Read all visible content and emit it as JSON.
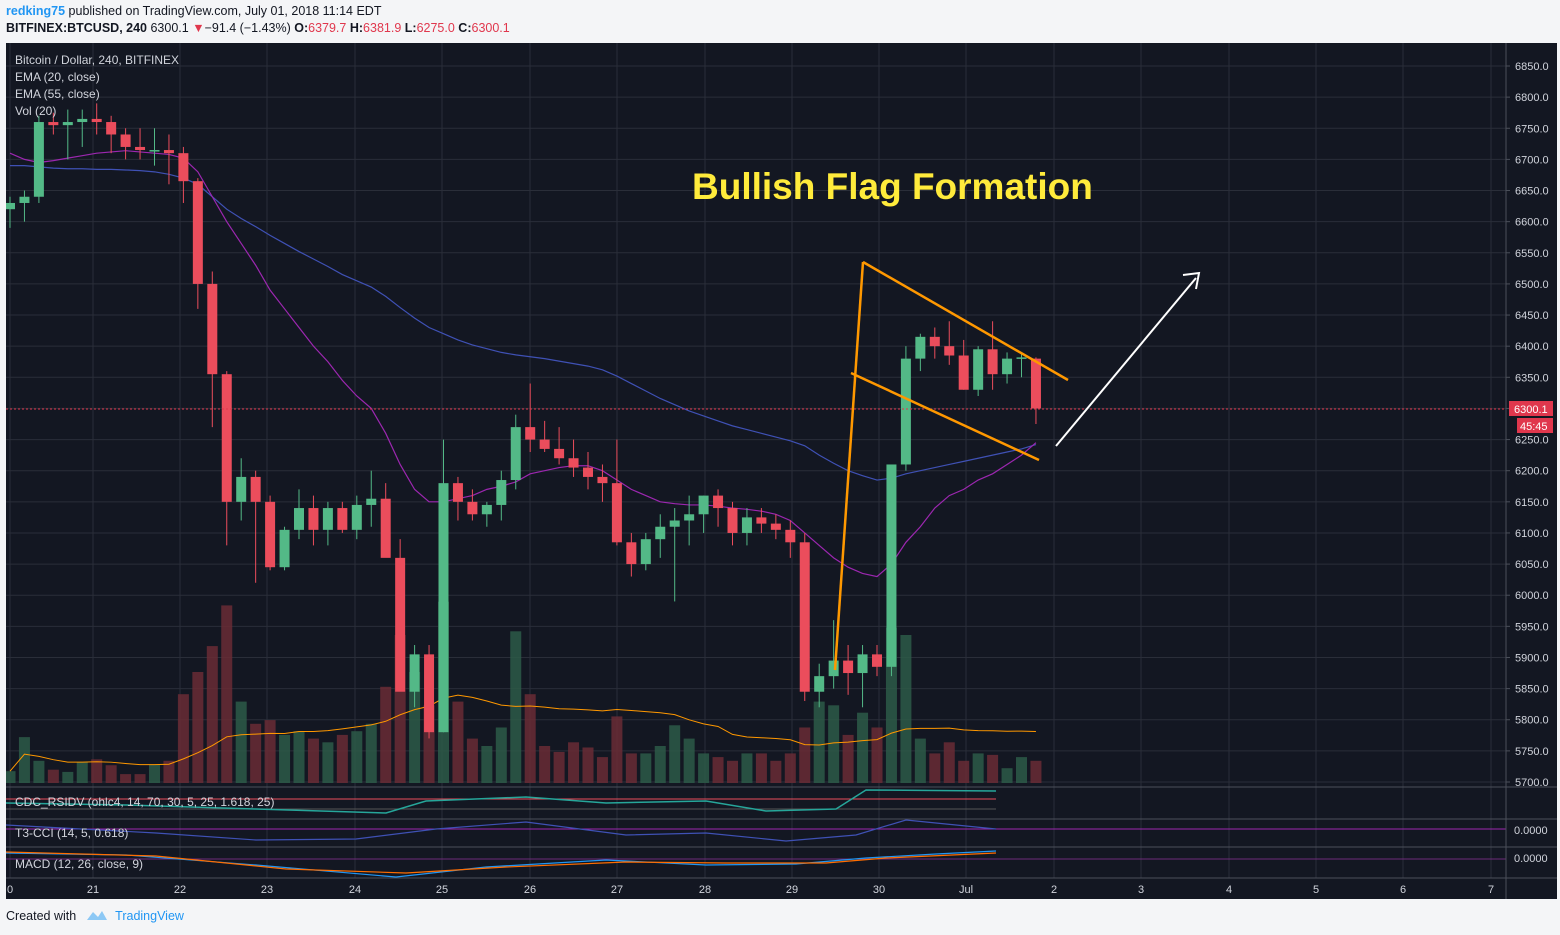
{
  "header": {
    "author": "redking75",
    "published": "published on TradingView.com, July 01, 2018 11:14 EDT",
    "symbol": "BITFINEX:BTCUSD, 240",
    "last": "6300.1",
    "change_arrow": "▼",
    "change": "−91.4 (−1.43%)",
    "o_label": "O:",
    "o_value": "6379.7",
    "h_label": "H:",
    "h_value": "6381.9",
    "l_label": "L:",
    "l_value": "6275.0",
    "c_label": "C:",
    "c_value": "6300.1"
  },
  "legend": [
    "Bitcoin / Dollar, 240, BITFINEX",
    "EMA (20, close)",
    "EMA (55, close)",
    "Vol (20)"
  ],
  "annotation": "Bullish Flag Formation",
  "indicators": {
    "rsi_label": "CDC_RSIDV (ohlc4, 14, 70, 30, 5, 25, 1.618, 25)",
    "cci_label": "T3-CCI (14, 5, 0.618)",
    "cci_value": "0.0000",
    "macd_label": "MACD (12, 26, close, 9)",
    "macd_value": "0.0000"
  },
  "price_badge": "6300.1",
  "countdown_badge": "45:45",
  "footer": {
    "created": "Created with",
    "brand": "TradingView"
  },
  "colors": {
    "up": "#53b987",
    "down": "#eb4d5c",
    "ema20": "#9c27b0",
    "ema55": "#3f51b5",
    "flag": "#ff9800",
    "annotation": "#ffeb3b",
    "volume_ma": "#ff9800"
  },
  "chart_data": {
    "type": "candlestick",
    "y_axis": {
      "min": 5700,
      "max": 6850,
      "ticks": [
        "6850.0",
        "6800.0",
        "6750.0",
        "6700.0",
        "6650.0",
        "6600.0",
        "6550.0",
        "6500.0",
        "6450.0",
        "6400.0",
        "6350.0",
        "6300.0",
        "6250.0",
        "6200.0",
        "6150.0",
        "6100.0",
        "6050.0",
        "6000.0",
        "5950.0",
        "5900.0",
        "5850.0",
        "5800.0",
        "5750.0",
        "5700.0"
      ]
    },
    "x_axis": {
      "ticks": [
        "0",
        "21",
        "22",
        "23",
        "24",
        "25",
        "26",
        "27",
        "28",
        "29",
        "30",
        "Jul",
        "2",
        "3",
        "4",
        "5",
        "6",
        "7"
      ]
    },
    "candles": [
      [
        6620,
        6640,
        6590,
        6630
      ],
      [
        6630,
        6650,
        6600,
        6640
      ],
      [
        6640,
        6770,
        6630,
        6760
      ],
      [
        6760,
        6775,
        6740,
        6755
      ],
      [
        6755,
        6780,
        6700,
        6760
      ],
      [
        6760,
        6780,
        6720,
        6765
      ],
      [
        6765,
        6790,
        6740,
        6760
      ],
      [
        6760,
        6770,
        6710,
        6740
      ],
      [
        6740,
        6750,
        6700,
        6720
      ],
      [
        6720,
        6750,
        6700,
        6715
      ],
      [
        6715,
        6750,
        6690,
        6715
      ],
      [
        6715,
        6740,
        6660,
        6710
      ],
      [
        6710,
        6720,
        6630,
        6665
      ],
      [
        6665,
        6670,
        6460,
        6500
      ],
      [
        6500,
        6520,
        6270,
        6355
      ],
      [
        6355,
        6360,
        6080,
        6150
      ],
      [
        6150,
        6220,
        6120,
        6190
      ],
      [
        6190,
        6200,
        6020,
        6150
      ],
      [
        6150,
        6160,
        6040,
        6045
      ],
      [
        6045,
        6110,
        6040,
        6105
      ],
      [
        6105,
        6170,
        6090,
        6140
      ],
      [
        6140,
        6160,
        6080,
        6105
      ],
      [
        6105,
        6150,
        6080,
        6140
      ],
      [
        6140,
        6150,
        6100,
        6105
      ],
      [
        6105,
        6160,
        6090,
        6145
      ],
      [
        6145,
        6200,
        6110,
        6155
      ],
      [
        6155,
        6180,
        6070,
        6060
      ],
      [
        6060,
        6090,
        5850,
        5845
      ],
      [
        5845,
        5920,
        5820,
        5905
      ],
      [
        5905,
        5920,
        5770,
        5780
      ],
      [
        5780,
        6250,
        5780,
        6180
      ],
      [
        6180,
        6190,
        6120,
        6150
      ],
      [
        6150,
        6170,
        6120,
        6130
      ],
      [
        6130,
        6150,
        6110,
        6145
      ],
      [
        6145,
        6200,
        6120,
        6185
      ],
      [
        6185,
        6290,
        6170,
        6270
      ],
      [
        6270,
        6340,
        6230,
        6250
      ],
      [
        6250,
        6280,
        6230,
        6235
      ],
      [
        6235,
        6270,
        6210,
        6220
      ],
      [
        6220,
        6250,
        6190,
        6205
      ],
      [
        6205,
        6230,
        6170,
        6190
      ],
      [
        6190,
        6210,
        6150,
        6180
      ],
      [
        6180,
        6250,
        6080,
        6085
      ],
      [
        6085,
        6100,
        6030,
        6050
      ],
      [
        6050,
        6100,
        6040,
        6090
      ],
      [
        6090,
        6130,
        6060,
        6110
      ],
      [
        6110,
        6140,
        5990,
        6120
      ],
      [
        6120,
        6160,
        6080,
        6130
      ],
      [
        6130,
        6160,
        6100,
        6160
      ],
      [
        6160,
        6170,
        6110,
        6140
      ],
      [
        6140,
        6150,
        6080,
        6100
      ],
      [
        6100,
        6140,
        6080,
        6125
      ],
      [
        6125,
        6140,
        6100,
        6115
      ],
      [
        6115,
        6130,
        6090,
        6105
      ],
      [
        6105,
        6120,
        6060,
        6085
      ],
      [
        6085,
        6100,
        5830,
        5845
      ],
      [
        5845,
        5890,
        5820,
        5870
      ],
      [
        5870,
        5960,
        5850,
        5895
      ],
      [
        5895,
        5920,
        5840,
        5875
      ],
      [
        5875,
        5920,
        5820,
        5905
      ],
      [
        5905,
        5920,
        5870,
        5885
      ],
      [
        5885,
        6210,
        5870,
        6210
      ],
      [
        6210,
        6400,
        6200,
        6380
      ],
      [
        6380,
        6420,
        6360,
        6415
      ],
      [
        6415,
        6430,
        6380,
        6400
      ],
      [
        6400,
        6440,
        6370,
        6385
      ],
      [
        6385,
        6410,
        6330,
        6330
      ],
      [
        6330,
        6400,
        6320,
        6395
      ],
      [
        6395,
        6440,
        6330,
        6355
      ],
      [
        6355,
        6390,
        6340,
        6380
      ],
      [
        6380,
        6390,
        6350,
        6382
      ],
      [
        6380,
        6382,
        6275,
        6300
      ]
    ],
    "volumes": [
      16,
      62,
      30,
      18,
      15,
      28,
      32,
      24,
      12,
      12,
      25,
      30,
      120,
      150,
      185,
      240,
      110,
      80,
      85,
      65,
      70,
      60,
      55,
      65,
      70,
      80,
      130,
      200,
      150,
      105,
      245,
      110,
      60,
      50,
      75,
      205,
      120,
      50,
      42,
      55,
      48,
      35,
      90,
      40,
      40,
      50,
      78,
      60,
      40,
      35,
      30,
      40,
      40,
      30,
      40,
      75,
      110,
      105,
      65,
      95,
      75,
      210,
      200,
      60,
      40,
      55,
      30,
      40,
      38,
      20,
      35,
      30
    ],
    "ema20": [
      6710,
      6700,
      6695,
      6698,
      6702,
      6706,
      6710,
      6712,
      6714,
      6712,
      6710,
      6708,
      6702,
      6680,
      6640,
      6600,
      6565,
      6530,
      6490,
      6460,
      6430,
      6400,
      6375,
      6345,
      6320,
      6300,
      6260,
      6210,
      6170,
      6150,
      6150,
      6155,
      6160,
      6170,
      6175,
      6182,
      6195,
      6200,
      6205,
      6208,
      6208,
      6200,
      6185,
      6170,
      6160,
      6150,
      6147,
      6145,
      6145,
      6143,
      6140,
      6138,
      6135,
      6130,
      6120,
      6100,
      6080,
      6060,
      6045,
      6035,
      6030,
      6050,
      6085,
      6110,
      6140,
      6160,
      6170,
      6185,
      6195,
      6210,
      6225,
      6245
    ],
    "ema55": [
      6690,
      6690,
      6688,
      6686,
      6685,
      6685,
      6684,
      6684,
      6683,
      6682,
      6680,
      6676,
      6670,
      6660,
      6640,
      6620,
      6605,
      6592,
      6578,
      6565,
      6552,
      6540,
      6528,
      6515,
      6505,
      6495,
      6480,
      6462,
      6445,
      6430,
      6420,
      6410,
      6402,
      6396,
      6390,
      6386,
      6383,
      6380,
      6376,
      6372,
      6368,
      6362,
      6352,
      6340,
      6328,
      6316,
      6306,
      6296,
      6288,
      6280,
      6272,
      6266,
      6260,
      6254,
      6248,
      6240,
      6225,
      6212,
      6200,
      6192,
      6185,
      6188,
      6195,
      6200,
      6205,
      6210,
      6215,
      6220,
      6225,
      6230,
      6235,
      6242
    ]
  }
}
